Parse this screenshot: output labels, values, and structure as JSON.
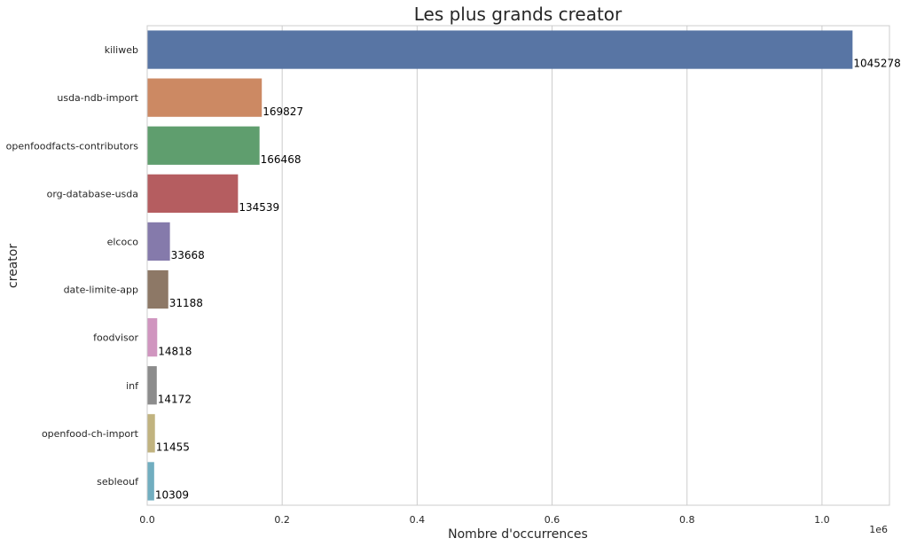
{
  "chart_data": {
    "type": "bar",
    "orientation": "horizontal",
    "title": "Les plus grands creator",
    "xlabel": "Nombre d'occurrences",
    "ylabel": "creator",
    "x_offset_label": "1e6",
    "xlim": [
      0,
      1.1
    ],
    "x_ticks": [
      "0.0",
      "0.2",
      "0.4",
      "0.6",
      "0.8",
      "1.0"
    ],
    "grid": true,
    "categories": [
      "kiliweb",
      "usda-ndb-import",
      "openfoodfacts-contributors",
      "org-database-usda",
      "elcoco",
      "date-limite-app",
      "foodvisor",
      "inf",
      "openfood-ch-import",
      "sebleouf"
    ],
    "values": [
      1045278,
      169827,
      166468,
      134539,
      33668,
      31188,
      14818,
      14172,
      11455,
      10309
    ],
    "data_labels": [
      "1045278",
      "169827",
      "166468",
      "134539",
      "33668",
      "31188",
      "14818",
      "14172",
      "11455",
      "10309"
    ],
    "colors": [
      "#5875a4",
      "#cc8963",
      "#5f9e6e",
      "#b55d60",
      "#857aab",
      "#8d7866",
      "#d095bf",
      "#8c8c8c",
      "#c1b37f",
      "#71aec0"
    ]
  }
}
